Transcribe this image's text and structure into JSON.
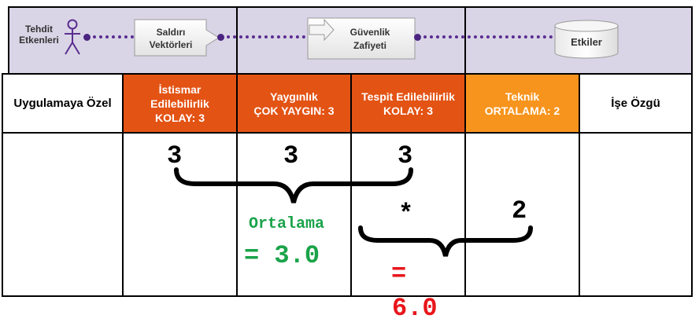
{
  "flow": {
    "threat_agents": "Tehdit\nEtkenleri",
    "attack_vectors": "Saldırı\nVektörleri",
    "security_weakness": "Güvenlik\nZafiyeti",
    "impacts": "Etkiler"
  },
  "table": {
    "app_specific": "Uygulamaya Özel",
    "exploitability": "İstismar\nEdilebilirlik\nKOLAY: 3",
    "prevalence": "Yaygınlık\nÇOK YAYGIN: 3",
    "detectability": "Tespit Edilebilirlik\nKOLAY: 3",
    "technical": "Teknik\nORTALAMA: 2",
    "business_specific": "İşe Özgü"
  },
  "calc": {
    "v1": "3",
    "v2": "3",
    "v3": "3",
    "avg_label": "Ortalama",
    "avg_value": "= 3.0",
    "times": "*",
    "v4": "2",
    "equals": "=",
    "result": "6.0"
  },
  "colors": {
    "purple_band": "#d9d5e6",
    "orange": "#e35314",
    "amber": "#f7941d",
    "green": "#1aa34a",
    "red": "#e8161b"
  }
}
